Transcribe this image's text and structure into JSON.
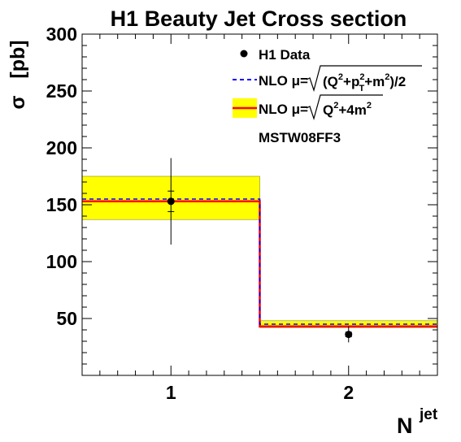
{
  "chart_data": {
    "type": "step",
    "title": "H1 Beauty Jet Cross section",
    "ylabel": "σ [pb]",
    "ylabel_symbol": "σ",
    "ylabel_unit": "[pb]",
    "xlabel": "N",
    "xlabel_superscript": "jet",
    "xlim": [
      0.5,
      2.5
    ],
    "ylim": [
      0,
      300
    ],
    "x_ticks": [
      1,
      2
    ],
    "x_tick_labels": [
      "1",
      "2"
    ],
    "y_ticks": [
      50,
      100,
      150,
      200,
      250,
      300
    ],
    "y_tick_labels": [
      "50",
      "100",
      "150",
      "200",
      "250",
      "300"
    ],
    "bins": [
      [
        0.5,
        1.5
      ],
      [
        1.5,
        2.5
      ]
    ],
    "data_points": {
      "name": "H1 Data",
      "x": [
        1,
        2
      ],
      "y": [
        153,
        36
      ],
      "stat_err": [
        9,
        2
      ],
      "tot_err": [
        38,
        7
      ]
    },
    "nlo_dashed": {
      "name_prefix": "NLO μ=",
      "name_formula": "√((Q²+p_T²+m²)/2)",
      "values": [
        155,
        45
      ],
      "color": "#0000ff"
    },
    "nlo_solid": {
      "name_prefix": "NLO μ=",
      "name_formula": "√(Q²+4m²)",
      "values": [
        153,
        43
      ],
      "band_low": [
        137,
        42
      ],
      "band_high": [
        175,
        48
      ],
      "color": "#ff0000",
      "band_color": "#ffff00"
    },
    "pdf_label": "MSTW08FF3",
    "legend_position": "top-right",
    "grid": false
  }
}
